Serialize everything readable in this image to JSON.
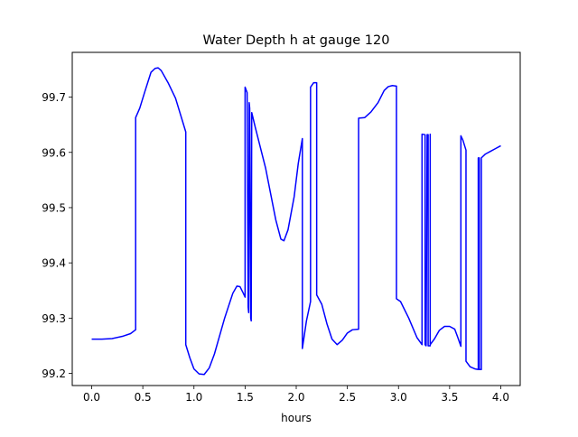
{
  "chart_data": {
    "type": "line",
    "title": "Water Depth h at gauge 120",
    "xlabel": "hours",
    "ylabel": "",
    "xlim": [
      -0.19,
      4.19
    ],
    "ylim": [
      99.178,
      99.781
    ],
    "xticks": [
      0.0,
      0.5,
      1.0,
      1.5,
      2.0,
      2.5,
      3.0,
      3.5,
      4.0
    ],
    "xtick_labels": [
      "0.0",
      "0.5",
      "1.0",
      "1.5",
      "2.0",
      "2.5",
      "3.0",
      "3.5",
      "4.0"
    ],
    "yticks": [
      99.2,
      99.3,
      99.4,
      99.5,
      99.6,
      99.7
    ],
    "ytick_labels": [
      "99.2",
      "99.3",
      "99.4",
      "99.5",
      "99.6",
      "99.7"
    ],
    "grid": false,
    "series": [
      {
        "name": "",
        "color": "#0000ff",
        "points": [
          [
            0.0,
            99.262
          ],
          [
            0.1,
            99.262
          ],
          [
            0.2,
            99.263
          ],
          [
            0.3,
            99.267
          ],
          [
            0.38,
            99.272
          ],
          [
            0.43,
            99.279
          ],
          [
            0.43,
            99.663
          ],
          [
            0.47,
            99.68
          ],
          [
            0.52,
            99.71
          ],
          [
            0.58,
            99.745
          ],
          [
            0.62,
            99.752
          ],
          [
            0.65,
            99.753
          ],
          [
            0.68,
            99.748
          ],
          [
            0.75,
            99.725
          ],
          [
            0.82,
            99.698
          ],
          [
            0.92,
            99.637
          ],
          [
            0.92,
            99.252
          ],
          [
            0.96,
            99.228
          ],
          [
            1.0,
            99.208
          ],
          [
            1.05,
            99.199
          ],
          [
            1.1,
            99.198
          ],
          [
            1.15,
            99.21
          ],
          [
            1.2,
            99.235
          ],
          [
            1.3,
            99.3
          ],
          [
            1.38,
            99.345
          ],
          [
            1.42,
            99.358
          ],
          [
            1.45,
            99.357
          ],
          [
            1.48,
            99.346
          ],
          [
            1.5,
            99.338
          ],
          [
            1.5,
            99.718
          ],
          [
            1.52,
            99.708
          ],
          [
            1.53,
            99.32
          ],
          [
            1.535,
            99.31
          ],
          [
            1.54,
            99.69
          ],
          [
            1.545,
            99.68
          ],
          [
            1.555,
            99.3
          ],
          [
            1.56,
            99.295
          ],
          [
            1.565,
            99.672
          ],
          [
            1.6,
            99.645
          ],
          [
            1.7,
            99.572
          ],
          [
            1.8,
            99.478
          ],
          [
            1.85,
            99.443
          ],
          [
            1.88,
            99.44
          ],
          [
            1.92,
            99.46
          ],
          [
            1.98,
            99.52
          ],
          [
            2.02,
            99.58
          ],
          [
            2.06,
            99.625
          ],
          [
            2.06,
            99.245
          ],
          [
            2.1,
            99.295
          ],
          [
            2.14,
            99.33
          ],
          [
            2.14,
            99.718
          ],
          [
            2.17,
            99.726
          ],
          [
            2.2,
            99.726
          ],
          [
            2.2,
            99.342
          ],
          [
            2.25,
            99.325
          ],
          [
            2.3,
            99.29
          ],
          [
            2.35,
            99.262
          ],
          [
            2.4,
            99.252
          ],
          [
            2.45,
            99.26
          ],
          [
            2.5,
            99.273
          ],
          [
            2.55,
            99.279
          ],
          [
            2.61,
            99.28
          ],
          [
            2.61,
            99.662
          ],
          [
            2.67,
            99.663
          ],
          [
            2.73,
            99.673
          ],
          [
            2.8,
            99.69
          ],
          [
            2.86,
            99.712
          ],
          [
            2.9,
            99.719
          ],
          [
            2.94,
            99.721
          ],
          [
            2.98,
            99.72
          ],
          [
            2.98,
            99.335
          ],
          [
            3.02,
            99.33
          ],
          [
            3.1,
            99.3
          ],
          [
            3.18,
            99.265
          ],
          [
            3.23,
            99.252
          ],
          [
            3.23,
            99.633
          ],
          [
            3.26,
            99.632
          ],
          [
            3.26,
            99.252
          ],
          [
            3.27,
            99.25
          ],
          [
            3.28,
            99.632
          ],
          [
            3.29,
            99.632
          ],
          [
            3.29,
            99.25
          ],
          [
            3.31,
            99.25
          ],
          [
            3.31,
            99.633
          ],
          [
            3.31,
            99.252
          ],
          [
            3.35,
            99.262
          ],
          [
            3.4,
            99.278
          ],
          [
            3.45,
            99.285
          ],
          [
            3.5,
            99.285
          ],
          [
            3.55,
            99.28
          ],
          [
            3.58,
            99.265
          ],
          [
            3.61,
            99.249
          ],
          [
            3.61,
            99.63
          ],
          [
            3.63,
            99.622
          ],
          [
            3.66,
            99.604
          ],
          [
            3.66,
            99.222
          ],
          [
            3.7,
            99.212
          ],
          [
            3.75,
            99.208
          ],
          [
            3.78,
            99.207
          ],
          [
            3.78,
            99.59
          ],
          [
            3.79,
            99.59
          ],
          [
            3.79,
            99.207
          ],
          [
            3.81,
            99.207
          ],
          [
            3.81,
            99.59
          ],
          [
            3.85,
            99.597
          ],
          [
            3.9,
            99.602
          ],
          [
            3.95,
            99.607
          ],
          [
            4.0,
            99.612
          ]
        ]
      }
    ]
  }
}
